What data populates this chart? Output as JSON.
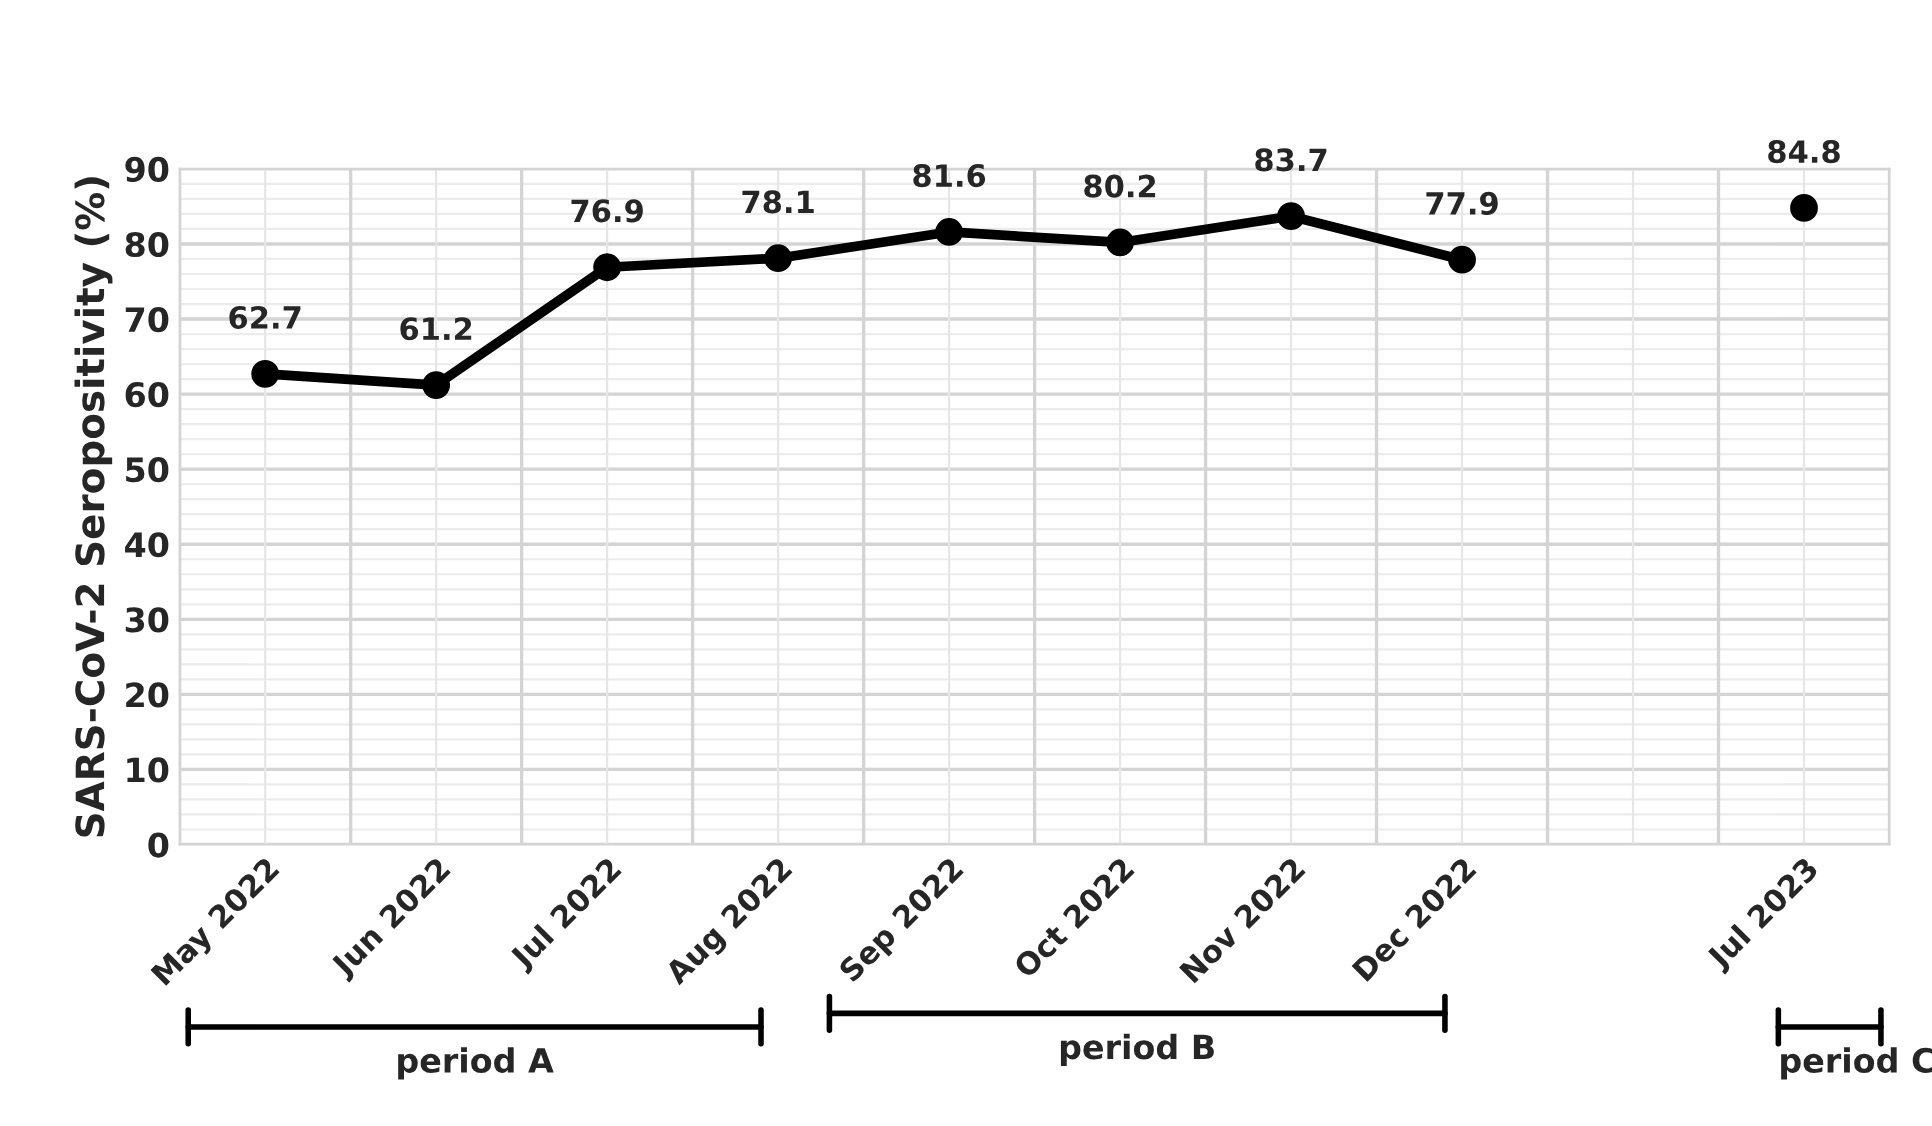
{
  "chart_data": {
    "type": "line",
    "ylabel": "SARS-CoV-2 Seropositivity (%)",
    "categories": [
      "May 2022",
      "Jun 2022",
      "Jul 2022",
      "Aug 2022",
      "Sep 2022",
      "Oct 2022",
      "Nov 2022",
      "Dec 2022",
      null,
      "Jul 2023"
    ],
    "series": [
      {
        "color": "#000000",
        "values": [
          62.7,
          61.2,
          76.9,
          78.1,
          81.6,
          80.2,
          83.7,
          77.9,
          null,
          84.8
        ]
      }
    ],
    "ylim": [
      0,
      90
    ],
    "yticks": [
      0,
      10,
      20,
      30,
      40,
      50,
      60,
      70,
      80,
      90
    ],
    "grid": true,
    "marker": "circle",
    "line_style": "solid",
    "data_labels": true,
    "legend": false,
    "annotations": [
      "period A",
      "period B",
      "period C"
    ]
  }
}
